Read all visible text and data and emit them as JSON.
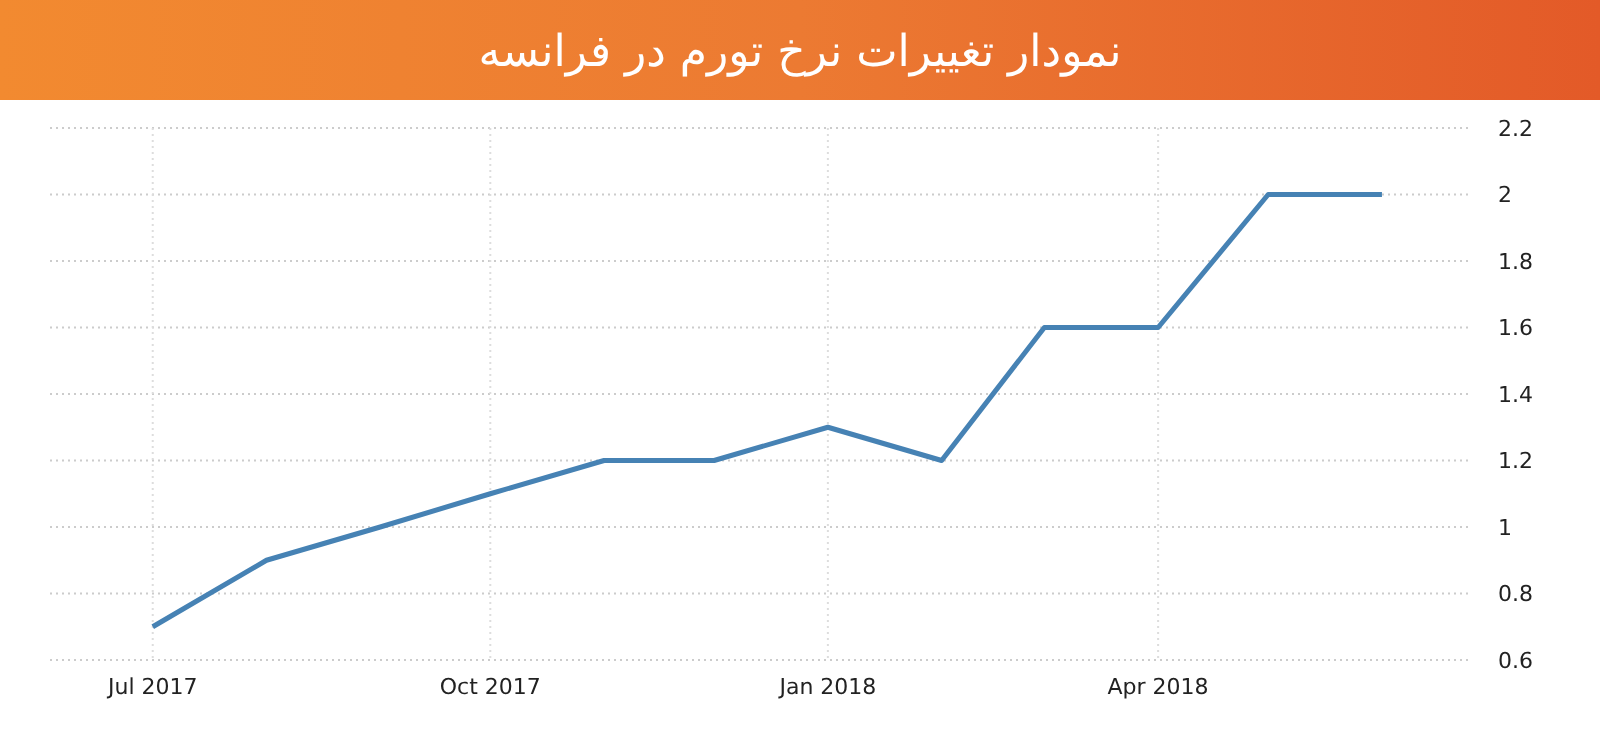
{
  "chart_data": {
    "type": "line",
    "title": "نمودار تغییرات نرخ تورم در فرانسه",
    "x": [
      "2017-07",
      "2017-08",
      "2017-09",
      "2017-10",
      "2017-11",
      "2017-12",
      "2018-01",
      "2018-02",
      "2018-03",
      "2018-04",
      "2018-05",
      "2018-06"
    ],
    "series": [
      {
        "color": "#4682b4",
        "values": [
          0.7,
          0.9,
          1.0,
          1.1,
          1.2,
          1.2,
          1.3,
          1.2,
          1.6,
          1.6,
          2.0,
          2.0
        ]
      }
    ],
    "xlim": [
      "2017-06-03",
      "2018-06-25"
    ],
    "xticks": [
      {
        "value": "2017-07",
        "label": "Jul 2017"
      },
      {
        "value": "2017-10",
        "label": "Oct 2017"
      },
      {
        "value": "2018-01",
        "label": "Jan 2018"
      },
      {
        "value": "2018-04",
        "label": "Apr 2018"
      }
    ],
    "ylim": [
      0.6,
      2.2
    ],
    "yticks": [
      0.6,
      0.8,
      1,
      1.2,
      1.4,
      1.6,
      1.8,
      2,
      2.2
    ],
    "grid": true,
    "marker": "none",
    "line_style": "solid"
  }
}
